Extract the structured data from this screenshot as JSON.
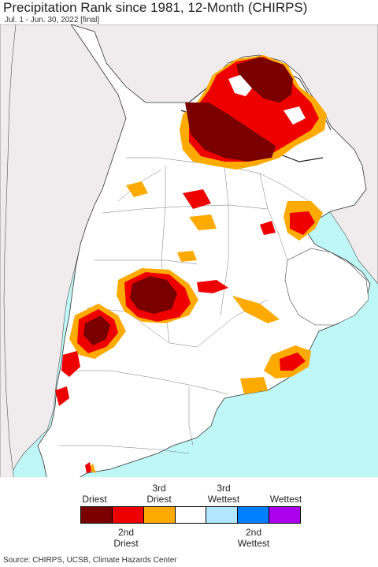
{
  "header": {
    "title": "Precipitation Rank since 1981, 12-Month (CHIRPS)",
    "subtitle": "Jul. 1 - Jun. 30, 2022 [final]"
  },
  "colors": {
    "ocean": "#bff7f7",
    "outside_land": "#f0ecee",
    "land": "#ffffff",
    "driest": "#7a0000",
    "second_driest": "#ee0000",
    "third_driest": "#ffaa00",
    "normal": "#ffffff",
    "third_wettest": "#b3e6ff",
    "second_wettest": "#0080ff",
    "wettest": "#aa00ee"
  },
  "legend": {
    "top_labels": [
      "Driest",
      "3rd\nDriest",
      "3rd\nWettest",
      "Wettest"
    ],
    "bottom_labels": [
      "2nd\nDriest",
      "2nd\nWettest"
    ],
    "swatches": [
      "driest",
      "second_driest",
      "third_driest",
      "normal",
      "third_wettest",
      "second_wettest",
      "wettest"
    ]
  },
  "footer": {
    "source": "Source: CHIRPS, UCSB, Climate Hazards Center"
  }
}
